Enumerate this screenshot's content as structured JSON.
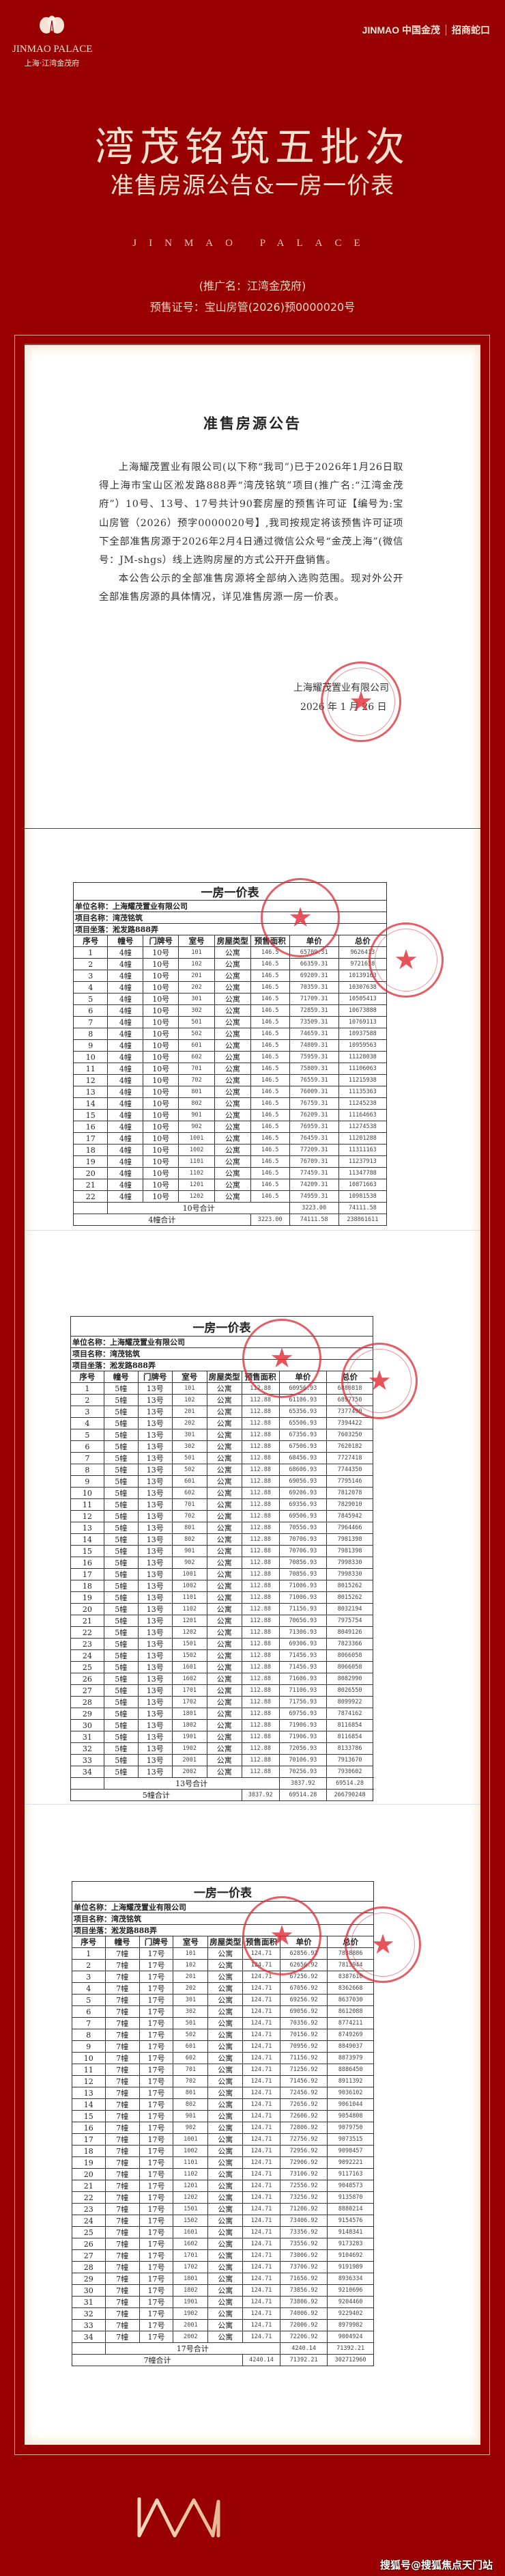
{
  "brand": {
    "left_en": "JINMAO PALACE",
    "left_cn": "上海·江湾金茂府",
    "right_text": "JINMAO 中国金茂",
    "right_partner": "招商蛇口",
    "footer_logo": "WM"
  },
  "header": {
    "title": "湾茂铭筑五批次",
    "subtitle": "准售房源公告&一房一价表",
    "tagline": "JINMAO PALACE",
    "promo_name": "(推广名：江湾金茂府)",
    "license": "预售证号：宝山房管(2026)预0000020号"
  },
  "announcement": {
    "title": "准售房源公告",
    "paragraphs": [
      "上海耀茂置业有限公司(以下称“我司”)已于2026年1月26日取得上海市宝山区淞发路888弄“湾茂铭筑”项目(推广名:“江湾金茂府”）10号、13号、17号共计90套房屋的预售许可证【编号为:宝山房管（2026）预字0000020号】,我司按规定将该预售许可证项下全部准售房源于2026年2月4日通过微信公众号“金茂上海”(微信号：JM-shgs）线上选购房屋的方式公开开盘销售。",
      "本公告公示的全部准售房源将全部纳入选购范围。现对外公开全部准售房源的具体情况，详见准售房源一房一价表。"
    ],
    "signature_company": "上海耀茂置业有限公司",
    "signature_date": "2026 年 1 月 26 日",
    "stamp_text": "上海耀茂置业有限公司"
  },
  "price_table_common": {
    "title": "一房一价表",
    "company": "单位名称：上海耀茂置业有限公司",
    "project": "项目名称：湾茂铭筑",
    "location": "项目坐落：淞发路888弄",
    "columns": [
      "序号",
      "幢号",
      "门牌号",
      "室号",
      "房屋类型",
      "预售面积",
      "单价",
      "总价"
    ]
  },
  "price_tables": [
    {
      "building": "4幢",
      "door": "10号",
      "type": "公寓",
      "area": "146.5",
      "rows": [
        [
          "101",
          "65709.31",
          "9626413"
        ],
        [
          "102",
          "66359.31",
          "9721638"
        ],
        [
          "201",
          "69209.31",
          "10139163"
        ],
        [
          "202",
          "70359.31",
          "10307638"
        ],
        [
          "301",
          "71709.31",
          "10505413"
        ],
        [
          "302",
          "72859.31",
          "10673888"
        ],
        [
          "501",
          "73509.31",
          "10769113"
        ],
        [
          "502",
          "74659.31",
          "10937588"
        ],
        [
          "601",
          "74809.31",
          "10959563"
        ],
        [
          "602",
          "75959.31",
          "11128038"
        ],
        [
          "701",
          "75809.31",
          "11106063"
        ],
        [
          "702",
          "76559.31",
          "11215938"
        ],
        [
          "801",
          "76009.31",
          "11135363"
        ],
        [
          "802",
          "76759.31",
          "11245238"
        ],
        [
          "901",
          "76209.31",
          "11164663"
        ],
        [
          "902",
          "76959.31",
          "11274538"
        ],
        [
          "1001",
          "76459.31",
          "11201288"
        ],
        [
          "1002",
          "77209.31",
          "11311163"
        ],
        [
          "1101",
          "76709.31",
          "11237913"
        ],
        [
          "1102",
          "77459.31",
          "11347788"
        ],
        [
          "1201",
          "74209.31",
          "10871663"
        ],
        [
          "1202",
          "74959.31",
          "10981538"
        ]
      ],
      "door_total": {
        "label": "10号合计",
        "area": "3223.00",
        "unit": "74111.58",
        "total": "238861611"
      },
      "building_total": {
        "label": "4幢合计",
        "area": "3223.00",
        "unit": "74111.58",
        "total": "238861611"
      }
    },
    {
      "building": "5幢",
      "door": "13号",
      "type": "公寓",
      "area": "112.88",
      "rows": [
        [
          "101",
          "60956.93",
          "6880818"
        ],
        [
          "102",
          "61106.93",
          "6897750"
        ],
        [
          "201",
          "65356.93",
          "7377490"
        ],
        [
          "202",
          "65506.93",
          "7394422"
        ],
        [
          "301",
          "67356.93",
          "7603250"
        ],
        [
          "302",
          "67506.93",
          "7620182"
        ],
        [
          "501",
          "68456.93",
          "7727418"
        ],
        [
          "502",
          "68606.93",
          "7744350"
        ],
        [
          "601",
          "69056.93",
          "7795146"
        ],
        [
          "602",
          "69206.93",
          "7812078"
        ],
        [
          "701",
          "69356.93",
          "7829010"
        ],
        [
          "702",
          "69506.93",
          "7845942"
        ],
        [
          "801",
          "70556.93",
          "7964466"
        ],
        [
          "802",
          "70706.93",
          "7981398"
        ],
        [
          "901",
          "70706.93",
          "7981398"
        ],
        [
          "902",
          "70856.93",
          "7998330"
        ],
        [
          "1001",
          "70856.93",
          "7998330"
        ],
        [
          "1002",
          "71006.93",
          "8015262"
        ],
        [
          "1101",
          "71006.93",
          "8015262"
        ],
        [
          "1102",
          "71156.93",
          "8032194"
        ],
        [
          "1201",
          "70656.93",
          "7975754"
        ],
        [
          "1202",
          "71306.93",
          "8049126"
        ],
        [
          "1501",
          "69306.93",
          "7823366"
        ],
        [
          "1502",
          "71456.93",
          "8066058"
        ],
        [
          "1601",
          "71456.93",
          "8066058"
        ],
        [
          "1602",
          "71606.93",
          "8082990"
        ],
        [
          "1701",
          "71106.93",
          "8026550"
        ],
        [
          "1702",
          "71756.93",
          "8099922"
        ],
        [
          "1801",
          "69756.93",
          "7874162"
        ],
        [
          "1802",
          "71906.93",
          "8116854"
        ],
        [
          "1901",
          "71906.93",
          "8116854"
        ],
        [
          "1902",
          "72056.93",
          "8133786"
        ],
        [
          "2001",
          "70106.93",
          "7913670"
        ],
        [
          "2002",
          "70256.93",
          "7930602"
        ]
      ],
      "door_total": {
        "label": "13号合计",
        "area": "3837.92",
        "unit": "69514.28",
        "total": "266790248"
      },
      "building_total": {
        "label": "5幢合计",
        "area": "3837.92",
        "unit": "69514.28",
        "total": "266790248"
      }
    },
    {
      "building": "7幢",
      "door": "17号",
      "type": "公寓",
      "area": "124.71",
      "rows": [
        [
          "101",
          "62856.92",
          "7838886"
        ],
        [
          "102",
          "62656.92",
          "7813944"
        ],
        [
          "201",
          "67256.92",
          "8387610"
        ],
        [
          "202",
          "67056.92",
          "8362668"
        ],
        [
          "301",
          "69256.92",
          "8637030"
        ],
        [
          "302",
          "69056.92",
          "8612088"
        ],
        [
          "501",
          "70356.92",
          "8774211"
        ],
        [
          "502",
          "70156.92",
          "8749269"
        ],
        [
          "601",
          "70956.92",
          "8849037"
        ],
        [
          "602",
          "71156.92",
          "8873979"
        ],
        [
          "701",
          "71256.92",
          "8886450"
        ],
        [
          "702",
          "71456.92",
          "8911392"
        ],
        [
          "801",
          "72456.92",
          "9036102"
        ],
        [
          "802",
          "72656.92",
          "9061044"
        ],
        [
          "901",
          "72606.92",
          "9054808"
        ],
        [
          "902",
          "72806.92",
          "9079750"
        ],
        [
          "1001",
          "72756.92",
          "9073515"
        ],
        [
          "1002",
          "72956.92",
          "9098457"
        ],
        [
          "1101",
          "72906.92",
          "9092221"
        ],
        [
          "1102",
          "73106.92",
          "9117163"
        ],
        [
          "1201",
          "72556.92",
          "9048573"
        ],
        [
          "1202",
          "73256.92",
          "9135870"
        ],
        [
          "1501",
          "71206.92",
          "8880214"
        ],
        [
          "1502",
          "73406.92",
          "9154576"
        ],
        [
          "1601",
          "73356.92",
          "9148341"
        ],
        [
          "1602",
          "73556.92",
          "9173283"
        ],
        [
          "1701",
          "73006.92",
          "9104692"
        ],
        [
          "1702",
          "73706.92",
          "9191989"
        ],
        [
          "1801",
          "71656.92",
          "8936334"
        ],
        [
          "1802",
          "73856.92",
          "9210696"
        ],
        [
          "1901",
          "73806.92",
          "9204460"
        ],
        [
          "1902",
          "74006.92",
          "9229402"
        ],
        [
          "2001",
          "72006.92",
          "8979982"
        ],
        [
          "2002",
          "72206.92",
          "9004924"
        ]
      ],
      "door_total": {
        "label": "17号合计",
        "area": "4240.14",
        "unit": "71392.21",
        "total": "302712960"
      },
      "building_total": {
        "label": "7幢合计",
        "area": "4240.14",
        "unit": "71392.21",
        "total": "302712960"
      }
    }
  ],
  "watermark": "搜狐号@搜狐焦点天门站",
  "colors": {
    "background": "#990001",
    "accent_text": "#f6e0cf",
    "stamp": "#dc2832"
  }
}
